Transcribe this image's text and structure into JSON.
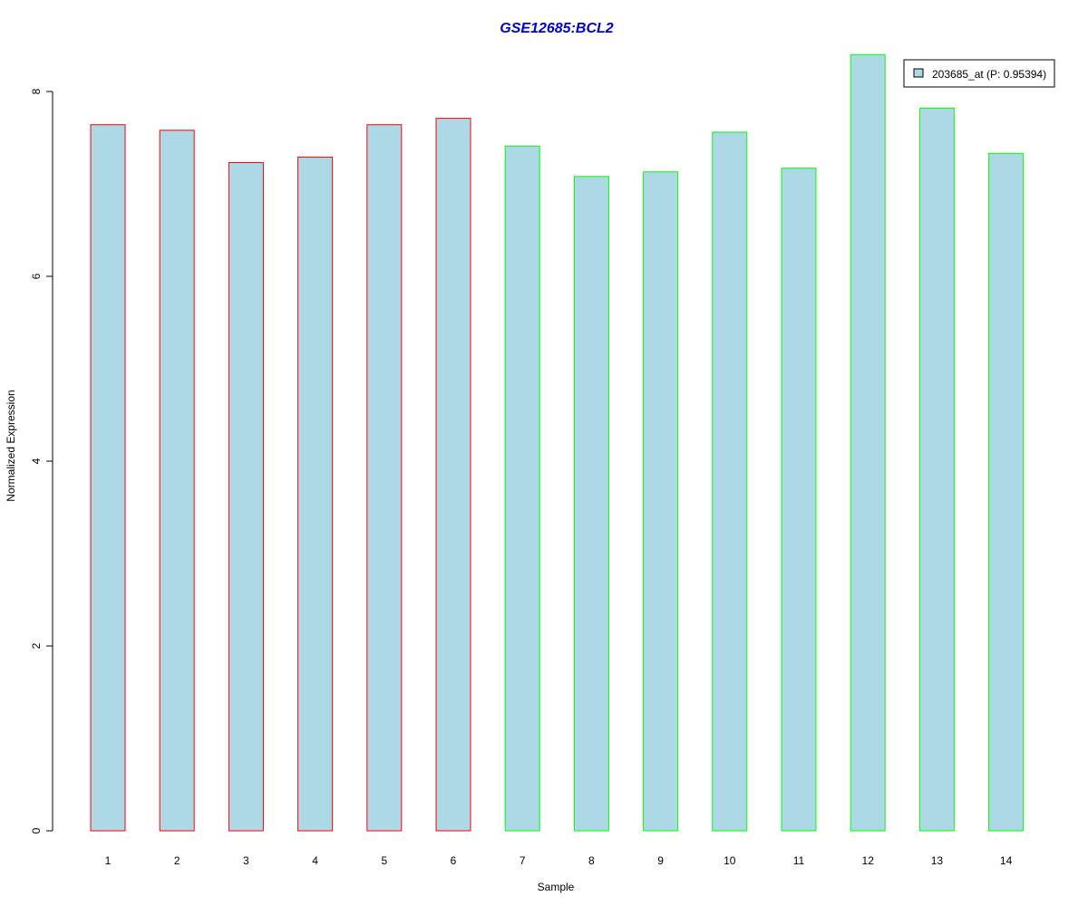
{
  "chart_data": {
    "type": "bar",
    "title": "GSE12685:BCL2",
    "xlabel": "Sample",
    "ylabel": "Normalized Expression",
    "categories": [
      "1",
      "2",
      "3",
      "4",
      "5",
      "6",
      "7",
      "8",
      "9",
      "10",
      "11",
      "12",
      "13",
      "14"
    ],
    "series": [
      {
        "name": "203685_at (P: 0.95394)",
        "values": [
          7.64,
          7.58,
          7.23,
          7.29,
          7.64,
          7.71,
          7.41,
          7.08,
          7.13,
          7.56,
          7.17,
          8.4,
          7.82,
          7.33
        ]
      }
    ],
    "groups": [
      1,
      1,
      1,
      1,
      1,
      1,
      2,
      2,
      2,
      2,
      2,
      2,
      2,
      2
    ],
    "ylim": [
      0,
      8
    ],
    "yticks": [
      "0",
      "2",
      "4",
      "6",
      "8"
    ],
    "grid": false,
    "legend_position": "top-right",
    "colors": {
      "title": "#0000cc",
      "bar_fill": "#add8e6",
      "group1_border": "#ff0000",
      "group2_border": "#00ff00",
      "axis": "#000000"
    }
  }
}
